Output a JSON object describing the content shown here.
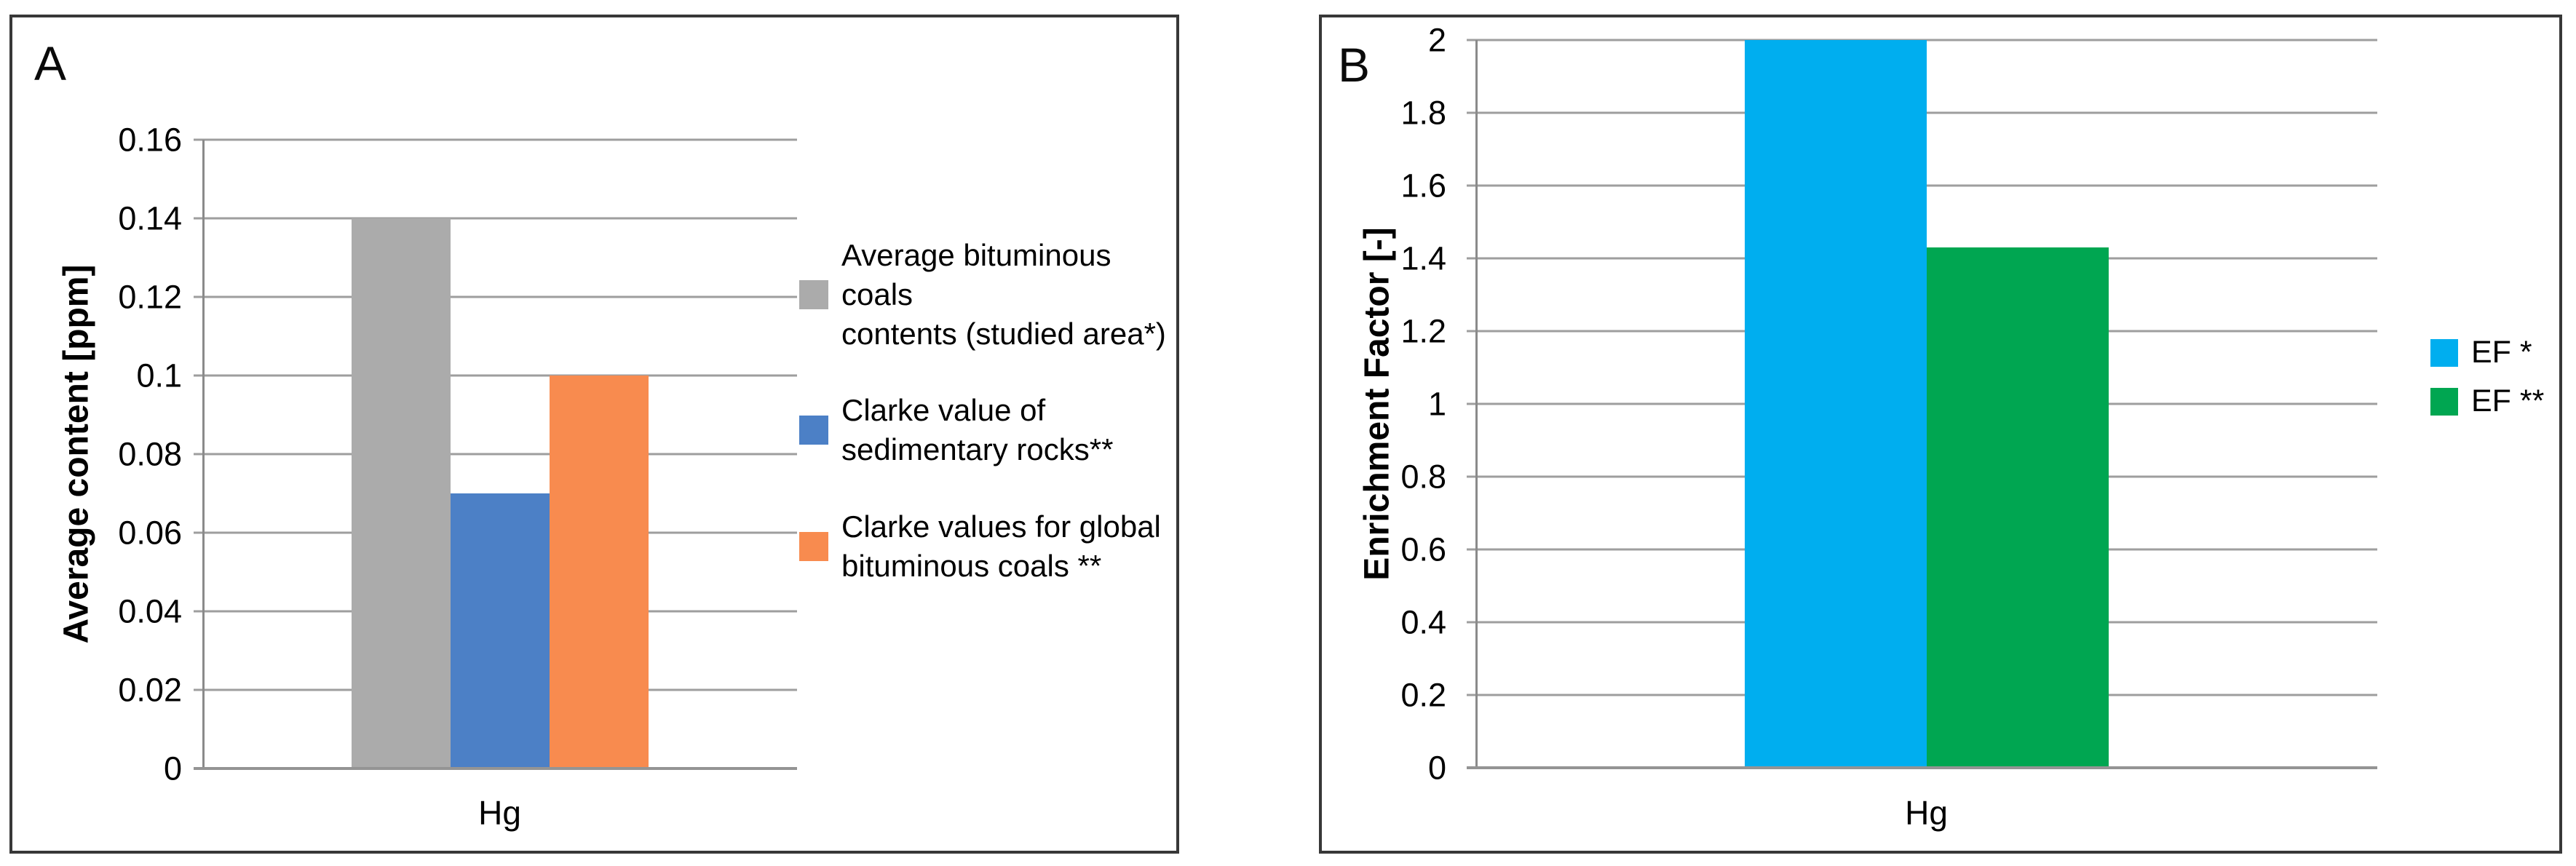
{
  "figure": {
    "background": "#ffffff",
    "styles": {
      "grid_color": "#9e9e9e",
      "axis_color": "#8a8a8a",
      "panel_border_color": "#383838",
      "text_color": "#000000"
    }
  },
  "chart_data": [
    {
      "type": "bar",
      "panel_label": "A",
      "title": "",
      "categories": [
        "Hg"
      ],
      "series": [
        {
          "name": "Average bituminous coals contents (studied area*)",
          "legend_lines": [
            "Average bituminous coals",
            "contents (studied area*)"
          ],
          "color": "#ababab",
          "values": [
            0.14
          ]
        },
        {
          "name": "Clarke value of sedimentary rocks**",
          "legend_lines": [
            "Clarke value of",
            "sedimentary rocks**"
          ],
          "color": "#4c80c6",
          "values": [
            0.07
          ]
        },
        {
          "name": "Clarke values for global bituminous coals **",
          "legend_lines": [
            "Clarke values for global",
            "bituminous coals **"
          ],
          "color": "#f88b4f",
          "values": [
            0.1
          ]
        }
      ],
      "xlabel": "",
      "ylabel": "Average content [ppm]",
      "ylim": [
        0,
        0.16
      ],
      "ytick_labels": [
        "0",
        "0.02",
        "0.04",
        "0.06",
        "0.08",
        "0.1",
        "0.12",
        "0.14",
        "0.16"
      ],
      "grid": true,
      "legend_position": "right"
    },
    {
      "type": "bar",
      "panel_label": "B",
      "title": "",
      "categories": [
        "Hg"
      ],
      "series": [
        {
          "name": "EF *",
          "legend_lines": [
            "EF *"
          ],
          "color": "#00aeef",
          "values": [
            2.0
          ]
        },
        {
          "name": "EF **",
          "legend_lines": [
            "EF **"
          ],
          "color": "#00a651",
          "values": [
            1.43
          ]
        }
      ],
      "xlabel": "",
      "ylabel": "Enrichment Factor [-]",
      "ylim": [
        0,
        2
      ],
      "ytick_labels": [
        "0",
        "0.2",
        "0.4",
        "0.6",
        "0.8",
        "1",
        "1.2",
        "1.4",
        "1.6",
        "1.8",
        "2"
      ],
      "grid": true,
      "legend_position": "right"
    }
  ]
}
